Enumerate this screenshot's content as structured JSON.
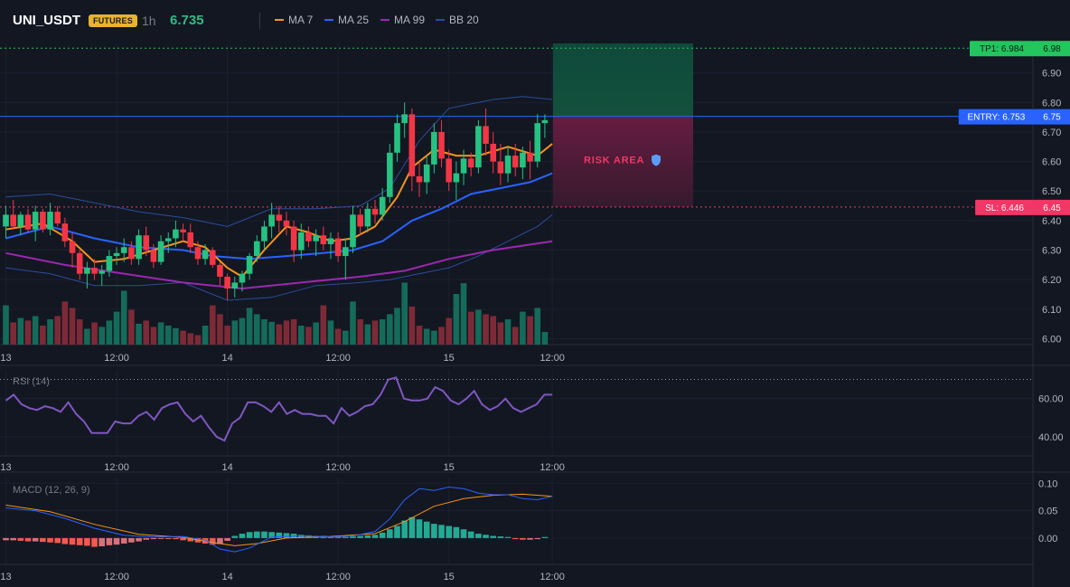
{
  "header": {
    "symbol": "UNI_USDT",
    "market_badge": "FUTURES",
    "timeframe": "1h",
    "last_price": "6.735",
    "legend": [
      {
        "label": "MA 7",
        "color": "#f7931a"
      },
      {
        "label": "MA 25",
        "color": "#2962ff"
      },
      {
        "label": "MA 99",
        "color": "#9c27b0"
      },
      {
        "label": "BB 20",
        "color": "#2a4d9b"
      }
    ]
  },
  "colors": {
    "up": "#26c281",
    "down": "#f23645",
    "vol_up": "#146b5a",
    "vol_down": "#7d2a37",
    "tp": "#22c55e",
    "entry": "#2962ff",
    "sl": "#f23666",
    "rsi": "#7e57c2",
    "macd": "#2962ff",
    "signal": "#f7931a"
  },
  "chart_data": [
    {
      "type": "candlestick",
      "name": "price",
      "y_range": [
        5.98,
        7.0
      ],
      "y_ticks": [
        "6.90",
        "6.80",
        "6.70",
        "6.60",
        "6.50",
        "6.40",
        "6.30",
        "6.20",
        "6.10",
        "6.00"
      ],
      "x_labels": [
        {
          "label": "13",
          "i": 0
        },
        {
          "label": "12:00",
          "i": 15
        },
        {
          "label": "14",
          "i": 30
        },
        {
          "label": "12:00",
          "i": 45
        },
        {
          "label": "15",
          "i": 60
        },
        {
          "label": "12:00",
          "i": 74
        }
      ],
      "candles": [
        [
          6.38,
          6.45,
          6.34,
          6.42
        ],
        [
          6.42,
          6.47,
          6.37,
          6.38
        ],
        [
          6.38,
          6.43,
          6.35,
          6.42
        ],
        [
          6.42,
          6.44,
          6.36,
          6.37
        ],
        [
          6.37,
          6.45,
          6.33,
          6.43
        ],
        [
          6.43,
          6.44,
          6.36,
          6.37
        ],
        [
          6.37,
          6.46,
          6.35,
          6.43
        ],
        [
          6.43,
          6.45,
          6.38,
          6.39
        ],
        [
          6.39,
          6.41,
          6.31,
          6.33
        ],
        [
          6.33,
          6.36,
          6.24,
          6.29
        ],
        [
          6.29,
          6.3,
          6.2,
          6.22
        ],
        [
          6.22,
          6.26,
          6.17,
          6.24
        ],
        [
          6.24,
          6.27,
          6.2,
          6.22
        ],
        [
          6.22,
          6.25,
          6.18,
          6.23
        ],
        [
          6.23,
          6.3,
          6.21,
          6.28
        ],
        [
          6.28,
          6.31,
          6.25,
          6.29
        ],
        [
          6.29,
          6.34,
          6.26,
          6.31
        ],
        [
          6.31,
          6.33,
          6.25,
          6.27
        ],
        [
          6.27,
          6.37,
          6.25,
          6.35
        ],
        [
          6.35,
          6.38,
          6.28,
          6.3
        ],
        [
          6.3,
          6.32,
          6.24,
          6.26
        ],
        [
          6.26,
          6.35,
          6.25,
          6.33
        ],
        [
          6.33,
          6.36,
          6.29,
          6.34
        ],
        [
          6.34,
          6.4,
          6.31,
          6.37
        ],
        [
          6.37,
          6.39,
          6.33,
          6.36
        ],
        [
          6.36,
          6.39,
          6.29,
          6.31
        ],
        [
          6.31,
          6.33,
          6.25,
          6.27
        ],
        [
          6.27,
          6.32,
          6.25,
          6.3
        ],
        [
          6.3,
          6.31,
          6.24,
          6.25
        ],
        [
          6.25,
          6.26,
          6.18,
          6.21
        ],
        [
          6.21,
          6.22,
          6.13,
          6.17
        ],
        [
          6.17,
          6.21,
          6.14,
          6.19
        ],
        [
          6.19,
          6.23,
          6.16,
          6.22
        ],
        [
          6.22,
          6.29,
          6.2,
          6.28
        ],
        [
          6.28,
          6.35,
          6.26,
          6.33
        ],
        [
          6.33,
          6.4,
          6.3,
          6.38
        ],
        [
          6.38,
          6.46,
          6.34,
          6.42
        ],
        [
          6.42,
          6.45,
          6.36,
          6.4
        ],
        [
          6.4,
          6.43,
          6.35,
          6.38
        ],
        [
          6.38,
          6.4,
          6.26,
          6.3
        ],
        [
          6.3,
          6.39,
          6.27,
          6.36
        ],
        [
          6.36,
          6.38,
          6.31,
          6.33
        ],
        [
          6.33,
          6.37,
          6.28,
          6.35
        ],
        [
          6.35,
          6.38,
          6.3,
          6.32
        ],
        [
          6.32,
          6.36,
          6.27,
          6.34
        ],
        [
          6.34,
          6.36,
          6.26,
          6.28
        ],
        [
          6.28,
          6.34,
          6.2,
          6.31
        ],
        [
          6.31,
          6.45,
          6.29,
          6.42
        ],
        [
          6.42,
          6.44,
          6.35,
          6.38
        ],
        [
          6.38,
          6.46,
          6.36,
          6.44
        ],
        [
          6.44,
          6.47,
          6.39,
          6.42
        ],
        [
          6.42,
          6.51,
          6.4,
          6.48
        ],
        [
          6.48,
          6.66,
          6.46,
          6.63
        ],
        [
          6.63,
          6.76,
          6.6,
          6.73
        ],
        [
          6.73,
          6.8,
          6.68,
          6.76
        ],
        [
          6.76,
          6.78,
          6.5,
          6.55
        ],
        [
          6.55,
          6.6,
          6.48,
          6.53
        ],
        [
          6.53,
          6.62,
          6.49,
          6.59
        ],
        [
          6.59,
          6.73,
          6.56,
          6.7
        ],
        [
          6.7,
          6.74,
          6.58,
          6.61
        ],
        [
          6.61,
          6.64,
          6.5,
          6.53
        ],
        [
          6.53,
          6.6,
          6.47,
          6.56
        ],
        [
          6.56,
          6.64,
          6.52,
          6.61
        ],
        [
          6.61,
          6.63,
          6.55,
          6.58
        ],
        [
          6.58,
          6.74,
          6.56,
          6.72
        ],
        [
          6.72,
          6.78,
          6.62,
          6.66
        ],
        [
          6.66,
          6.7,
          6.56,
          6.6
        ],
        [
          6.6,
          6.66,
          6.52,
          6.56
        ],
        [
          6.56,
          6.65,
          6.53,
          6.62
        ],
        [
          6.62,
          6.66,
          6.55,
          6.58
        ],
        [
          6.58,
          6.65,
          6.54,
          6.63
        ],
        [
          6.63,
          6.67,
          6.54,
          6.6
        ],
        [
          6.6,
          6.76,
          6.58,
          6.73
        ],
        [
          6.73,
          6.76,
          6.68,
          6.74
        ]
      ],
      "volume": [
        0.62,
        0.35,
        0.42,
        0.38,
        0.45,
        0.3,
        0.4,
        0.45,
        0.68,
        0.58,
        0.4,
        0.25,
        0.35,
        0.28,
        0.38,
        0.52,
        0.85,
        0.55,
        0.33,
        0.38,
        0.28,
        0.35,
        0.3,
        0.26,
        0.22,
        0.18,
        0.15,
        0.3,
        0.62,
        0.48,
        0.3,
        0.38,
        0.42,
        0.58,
        0.48,
        0.4,
        0.36,
        0.32,
        0.38,
        0.4,
        0.3,
        0.28,
        0.35,
        0.62,
        0.38,
        0.25,
        0.22,
        0.68,
        0.4,
        0.32,
        0.38,
        0.4,
        0.48,
        0.58,
        0.98,
        0.6,
        0.3,
        0.25,
        0.22,
        0.28,
        0.42,
        0.8,
        0.97,
        0.52,
        0.55,
        0.48,
        0.45,
        0.35,
        0.4,
        0.28,
        0.52,
        0.45,
        0.58,
        0.2
      ],
      "ma7": [
        [
          0,
          6.37
        ],
        [
          5,
          6.39
        ],
        [
          9,
          6.33
        ],
        [
          12,
          6.26
        ],
        [
          16,
          6.27
        ],
        [
          20,
          6.3
        ],
        [
          24,
          6.33
        ],
        [
          27,
          6.31
        ],
        [
          30,
          6.24
        ],
        [
          32,
          6.21
        ],
        [
          35,
          6.3
        ],
        [
          38,
          6.38
        ],
        [
          41,
          6.36
        ],
        [
          44,
          6.33
        ],
        [
          47,
          6.34
        ],
        [
          50,
          6.38
        ],
        [
          53,
          6.48
        ],
        [
          55,
          6.58
        ],
        [
          58,
          6.64
        ],
        [
          61,
          6.62
        ],
        [
          64,
          6.62
        ],
        [
          68,
          6.65
        ],
        [
          72,
          6.62
        ],
        [
          74,
          6.66
        ]
      ],
      "ma25": [
        [
          0,
          6.34
        ],
        [
          6,
          6.38
        ],
        [
          12,
          6.34
        ],
        [
          18,
          6.31
        ],
        [
          24,
          6.3
        ],
        [
          28,
          6.28
        ],
        [
          33,
          6.27
        ],
        [
          38,
          6.28
        ],
        [
          43,
          6.29
        ],
        [
          47,
          6.3
        ],
        [
          51,
          6.33
        ],
        [
          55,
          6.4
        ],
        [
          59,
          6.44
        ],
        [
          63,
          6.49
        ],
        [
          67,
          6.51
        ],
        [
          71,
          6.53
        ],
        [
          74,
          6.56
        ]
      ],
      "ma99": [
        [
          0,
          6.29
        ],
        [
          8,
          6.25
        ],
        [
          16,
          6.22
        ],
        [
          24,
          6.19
        ],
        [
          32,
          6.17
        ],
        [
          40,
          6.19
        ],
        [
          48,
          6.21
        ],
        [
          54,
          6.23
        ],
        [
          60,
          6.27
        ],
        [
          66,
          6.3
        ],
        [
          74,
          6.33
        ]
      ],
      "bb_upper": [
        [
          0,
          6.48
        ],
        [
          6,
          6.49
        ],
        [
          12,
          6.46
        ],
        [
          18,
          6.43
        ],
        [
          24,
          6.41
        ],
        [
          30,
          6.38
        ],
        [
          36,
          6.44
        ],
        [
          42,
          6.44
        ],
        [
          48,
          6.45
        ],
        [
          52,
          6.51
        ],
        [
          56,
          6.67
        ],
        [
          60,
          6.78
        ],
        [
          66,
          6.81
        ],
        [
          70,
          6.82
        ],
        [
          74,
          6.81
        ]
      ],
      "bb_lower": [
        [
          0,
          6.24
        ],
        [
          6,
          6.22
        ],
        [
          12,
          6.18
        ],
        [
          18,
          6.18
        ],
        [
          24,
          6.19
        ],
        [
          30,
          6.13
        ],
        [
          36,
          6.14
        ],
        [
          42,
          6.18
        ],
        [
          48,
          6.19
        ],
        [
          52,
          6.2
        ],
        [
          56,
          6.22
        ],
        [
          60,
          6.24
        ],
        [
          64,
          6.28
        ],
        [
          68,
          6.33
        ],
        [
          72,
          6.38
        ],
        [
          74,
          6.42
        ]
      ],
      "levels": [
        {
          "label": "TP1: 6.984",
          "axis": "6.98",
          "value": 6.984
        },
        {
          "label": "ENTRY: 6.753",
          "axis": "6.75",
          "value": 6.753
        },
        {
          "label": "SL: 6.446",
          "axis": "6.45",
          "value": 6.446
        }
      ],
      "risk_label": "RISK AREA"
    },
    {
      "type": "line",
      "name": "RSI (14)",
      "label": "RSI (14)",
      "y_range": [
        30,
        75
      ],
      "y_ticks": [
        "60.00",
        "40.00"
      ],
      "reference_line": 70,
      "x_labels": [
        {
          "label": "13",
          "i": 0
        },
        {
          "label": "12:00",
          "i": 15
        },
        {
          "label": "14",
          "i": 30
        },
        {
          "label": "12:00",
          "i": 45
        },
        {
          "label": "15",
          "i": 60
        },
        {
          "label": "12:00",
          "i": 74
        }
      ],
      "values": [
        59,
        62,
        57,
        55,
        54,
        56,
        55,
        53,
        58,
        52,
        48,
        42,
        42,
        42,
        48,
        47,
        47,
        51,
        53,
        49,
        55,
        57,
        58,
        52,
        48,
        51,
        45,
        40,
        38,
        47,
        50,
        58,
        58,
        56,
        53,
        58,
        52,
        54,
        52,
        52,
        51,
        51,
        47,
        55,
        51,
        53,
        56,
        57,
        62,
        70,
        71,
        60,
        59,
        59,
        60,
        66,
        64,
        59,
        57,
        60,
        64,
        57,
        54,
        56,
        60,
        55,
        53,
        55,
        57,
        62,
        62
      ],
      "value_count": 71
    },
    {
      "type": "line",
      "name": "MACD (12, 26, 9)",
      "label": "MACD (12, 26, 9)",
      "y_range": [
        -0.048,
        0.112
      ],
      "y_ticks": [
        "0.10",
        "0.05",
        "0.00"
      ],
      "x_labels": [
        {
          "label": "13",
          "i": 0
        },
        {
          "label": "12:00",
          "i": 15
        },
        {
          "label": "14",
          "i": 30
        },
        {
          "label": "12:00",
          "i": 45
        },
        {
          "label": "15",
          "i": 60
        },
        {
          "label": "12:00",
          "i": 74
        }
      ],
      "macd": [
        [
          0,
          0.055
        ],
        [
          4,
          0.05
        ],
        [
          8,
          0.036
        ],
        [
          12,
          0.018
        ],
        [
          16,
          0.005
        ],
        [
          20,
          0.002
        ],
        [
          24,
          0.003
        ],
        [
          27,
          -0.004
        ],
        [
          29,
          -0.02
        ],
        [
          31,
          -0.025
        ],
        [
          33,
          -0.018
        ],
        [
          36,
          0.002
        ],
        [
          40,
          0.004
        ],
        [
          44,
          0.002
        ],
        [
          47,
          0.004
        ],
        [
          50,
          0.012
        ],
        [
          52,
          0.035
        ],
        [
          54,
          0.07
        ],
        [
          56,
          0.09
        ],
        [
          58,
          0.087
        ],
        [
          60,
          0.093
        ],
        [
          62,
          0.09
        ],
        [
          64,
          0.082
        ],
        [
          66,
          0.079
        ],
        [
          68,
          0.079
        ],
        [
          70,
          0.072
        ],
        [
          72,
          0.07
        ],
        [
          74,
          0.076
        ]
      ],
      "signal": [
        [
          0,
          0.06
        ],
        [
          6,
          0.048
        ],
        [
          12,
          0.025
        ],
        [
          18,
          0.007
        ],
        [
          24,
          0.001
        ],
        [
          28,
          -0.008
        ],
        [
          31,
          -0.014
        ],
        [
          34,
          -0.01
        ],
        [
          38,
          0.0
        ],
        [
          44,
          0.003
        ],
        [
          50,
          0.008
        ],
        [
          54,
          0.03
        ],
        [
          58,
          0.058
        ],
        [
          62,
          0.072
        ],
        [
          66,
          0.078
        ],
        [
          70,
          0.08
        ],
        [
          74,
          0.076
        ]
      ],
      "histogram": [
        -0.004,
        -0.004,
        -0.005,
        -0.006,
        -0.006,
        -0.007,
        -0.008,
        -0.009,
        -0.011,
        -0.012,
        -0.013,
        -0.014,
        -0.016,
        -0.015,
        -0.013,
        -0.012,
        -0.01,
        -0.008,
        -0.006,
        -0.003,
        -0.002,
        -0.001,
        -0.001,
        -0.002,
        -0.004,
        -0.006,
        -0.008,
        -0.01,
        -0.012,
        -0.011,
        -0.005,
        0.004,
        0.008,
        0.011,
        0.012,
        0.012,
        0.011,
        0.01,
        0.009,
        0.008,
        0.006,
        0.005,
        0.004,
        0.004,
        0.003,
        0.002,
        0.002,
        0.003,
        0.004,
        0.005,
        0.006,
        0.01,
        0.016,
        0.022,
        0.032,
        0.038,
        0.034,
        0.03,
        0.026,
        0.024,
        0.022,
        0.02,
        0.016,
        0.012,
        0.008,
        0.006,
        0.004,
        0.003,
        0.002,
        -0.002,
        -0.003,
        -0.003,
        -0.002,
        0.002
      ]
    }
  ]
}
